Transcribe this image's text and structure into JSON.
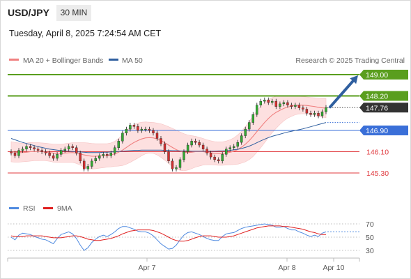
{
  "header": {
    "symbol": "USD/JPY",
    "timeframe": "30 MIN",
    "datetime": "Tuesday, April 8, 2025 7:24:54 AM CET"
  },
  "legend": {
    "ma20": "MA 20 + Bollinger Bands",
    "ma50": "MA 50",
    "rsi": "RSI",
    "ma9": "9MA",
    "credit": "Research © 2025 Trading Central"
  },
  "colors": {
    "resistance": "#5a9e1e",
    "support": "#e0393e",
    "pivot": "#3a6fd8",
    "ma20": "#f08080",
    "band_fill": "#fde0e0",
    "ma50": "#2f5f9f",
    "candle_up": "#33aa33",
    "candle_down": "#d43030",
    "rsi": "#4f8ae0",
    "rsi_ma": "#e02020",
    "arrow": "#2f5f9f",
    "last_price_bg": "#333333"
  },
  "chart_data": [
    {
      "type": "candlestick",
      "symbol": "USD/JPY",
      "x_labels": [
        "Apr 7",
        "Apr 8",
        "Apr 10"
      ],
      "last_price": 147.76,
      "levels": [
        {
          "label": "149.00",
          "value": 149.0,
          "kind": "resistance"
        },
        {
          "label": "148.20",
          "value": 148.2,
          "kind": "resistance"
        },
        {
          "label": "146.90",
          "value": 146.9,
          "kind": "pivot"
        },
        {
          "label": "146.10",
          "value": 146.1,
          "kind": "support"
        },
        {
          "label": "145.30",
          "value": 145.3,
          "kind": "support"
        }
      ],
      "target_arrow": {
        "from": 147.76,
        "to": 149.0,
        "direction": "up"
      },
      "closes": [
        146.05,
        145.95,
        146.15,
        146.2,
        146.3,
        146.25,
        146.2,
        146.15,
        146.1,
        146.05,
        145.95,
        145.85,
        146.0,
        146.15,
        146.2,
        146.3,
        146.25,
        146.05,
        145.75,
        145.45,
        145.55,
        145.75,
        145.85,
        145.95,
        146.0,
        145.95,
        146.05,
        146.25,
        146.5,
        146.8,
        146.95,
        147.1,
        147.05,
        146.9,
        146.95,
        146.95,
        146.9,
        146.8,
        146.6,
        146.4,
        146.1,
        145.75,
        145.45,
        145.5,
        145.8,
        146.1,
        146.35,
        146.5,
        146.45,
        146.35,
        146.2,
        146.05,
        145.9,
        145.8,
        145.75,
        146.0,
        146.2,
        146.25,
        146.3,
        146.45,
        146.7,
        146.95,
        147.2,
        147.5,
        147.85,
        148.0,
        148.05,
        147.95,
        148.0,
        147.8,
        147.9,
        147.95,
        147.85,
        147.8,
        147.85,
        147.75,
        147.7,
        147.55,
        147.5,
        147.55,
        147.45,
        147.6,
        147.76
      ],
      "ma20": [
        146.1,
        146.08,
        146.07,
        146.07,
        146.08,
        146.1,
        146.1,
        146.1,
        146.1,
        146.09,
        146.07,
        146.05,
        146.04,
        146.04,
        146.05,
        146.06,
        146.07,
        146.05,
        146.02,
        145.98,
        145.95,
        145.93,
        145.93,
        145.94,
        145.95,
        145.96,
        145.98,
        146.02,
        146.08,
        146.16,
        146.26,
        146.36,
        146.45,
        146.52,
        146.58,
        146.62,
        146.63,
        146.62,
        146.58,
        146.52,
        146.44,
        146.35,
        146.26,
        146.18,
        146.12,
        146.08,
        146.07,
        146.08,
        146.1,
        146.1,
        146.1,
        146.08,
        146.06,
        146.04,
        146.03,
        146.03,
        146.05,
        146.08,
        146.12,
        146.18,
        146.27,
        146.38,
        146.52,
        146.68,
        146.86,
        147.03,
        147.2,
        147.35,
        147.48,
        147.58,
        147.66,
        147.73,
        147.78,
        147.81,
        147.84,
        147.85,
        147.85,
        147.84,
        147.82,
        147.8,
        147.77,
        147.75,
        147.74
      ],
      "band_width": [
        0.38,
        0.37,
        0.36,
        0.35,
        0.35,
        0.35,
        0.34,
        0.34,
        0.33,
        0.33,
        0.33,
        0.34,
        0.34,
        0.34,
        0.35,
        0.36,
        0.37,
        0.39,
        0.42,
        0.46,
        0.48,
        0.48,
        0.47,
        0.46,
        0.45,
        0.44,
        0.45,
        0.47,
        0.52,
        0.58,
        0.63,
        0.66,
        0.67,
        0.66,
        0.63,
        0.6,
        0.58,
        0.58,
        0.6,
        0.63,
        0.66,
        0.69,
        0.72,
        0.73,
        0.72,
        0.7,
        0.66,
        0.62,
        0.58,
        0.54,
        0.5,
        0.47,
        0.45,
        0.44,
        0.44,
        0.44,
        0.45,
        0.47,
        0.5,
        0.55,
        0.6,
        0.66,
        0.72,
        0.76,
        0.78,
        0.78,
        0.76,
        0.72,
        0.66,
        0.6,
        0.53,
        0.47,
        0.42,
        0.38,
        0.35,
        0.33,
        0.32,
        0.32,
        0.32,
        0.33,
        0.34,
        0.35,
        0.36
      ],
      "ma50": [
        146.6,
        146.55,
        146.5,
        146.45,
        146.41,
        146.37,
        146.33,
        146.29,
        146.26,
        146.23,
        146.2,
        146.18,
        146.16,
        146.14,
        146.13,
        146.12,
        146.11,
        146.1,
        146.09,
        146.08,
        146.07,
        146.07,
        146.07,
        146.07,
        146.08,
        146.08,
        146.09,
        146.1,
        146.11,
        146.12,
        146.13,
        146.14,
        146.15,
        146.15,
        146.16,
        146.16,
        146.16,
        146.16,
        146.16,
        146.16,
        146.15,
        146.15,
        146.14,
        146.14,
        146.13,
        146.13,
        146.13,
        146.12,
        146.12,
        146.12,
        146.12,
        146.12,
        146.12,
        146.12,
        146.13,
        146.13,
        146.14,
        146.15,
        146.17,
        146.19,
        146.22,
        146.26,
        146.31,
        146.37,
        146.44,
        146.51,
        146.57,
        146.63,
        146.68,
        146.72,
        146.76,
        146.8,
        146.84,
        146.87,
        146.9,
        146.93,
        146.96,
        147.0,
        147.04,
        147.08,
        147.12,
        147.16,
        147.2
      ],
      "rsi_panel": {
        "y_ticks": [
          70,
          50,
          30
        ],
        "rsi": [
          50,
          46,
          53,
          56,
          55,
          54,
          51,
          49,
          47,
          46,
          43,
          40,
          48,
          54,
          56,
          58,
          55,
          48,
          38,
          30,
          34,
          42,
          47,
          51,
          53,
          51,
          54,
          58,
          63,
          66,
          66,
          64,
          62,
          59,
          58,
          58,
          56,
          52,
          46,
          40,
          36,
          32,
          33,
          38,
          46,
          53,
          57,
          58,
          56,
          54,
          51,
          48,
          46,
          45,
          45,
          51,
          55,
          56,
          57,
          60,
          63,
          65,
          66,
          67,
          68,
          69,
          70,
          69,
          68,
          65,
          65,
          66,
          63,
          61,
          61,
          58,
          56,
          53,
          51,
          53,
          51,
          56,
          58
        ],
        "ma9": [
          52,
          51,
          51,
          51,
          52,
          52,
          52,
          52,
          52,
          51,
          50,
          49,
          49,
          49,
          50,
          51,
          52,
          52,
          51,
          49,
          47,
          46,
          45,
          45,
          46,
          47,
          48,
          50,
          52,
          55,
          57,
          59,
          60,
          61,
          61,
          61,
          61,
          60,
          58,
          56,
          53,
          50,
          47,
          45,
          44,
          44,
          45,
          47,
          49,
          51,
          52,
          52,
          52,
          51,
          50,
          50,
          50,
          51,
          52,
          54,
          56,
          58,
          60,
          62,
          64,
          65,
          66,
          67,
          67,
          67,
          67,
          66,
          66,
          65,
          64,
          63,
          62,
          60,
          58,
          57,
          55,
          54,
          54
        ]
      }
    }
  ]
}
